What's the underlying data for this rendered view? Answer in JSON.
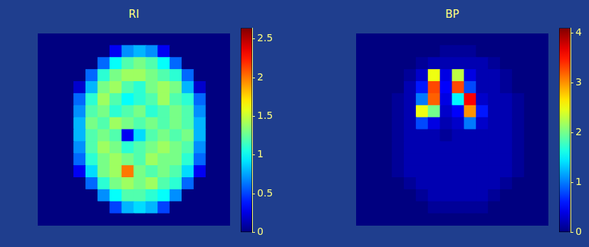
{
  "chart_data": [
    {
      "type": "heatmap",
      "title": "RI",
      "tick_labels": false,
      "cells": [
        [
          0,
          0,
          0,
          0,
          0,
          0,
          0,
          0,
          0,
          0,
          0,
          0,
          0,
          0,
          0,
          0
        ],
        [
          0,
          0,
          0,
          0,
          0,
          0,
          0.3,
          0.7,
          0.8,
          0.7,
          0.3,
          0,
          0,
          0,
          0,
          0
        ],
        [
          0,
          0,
          0,
          0,
          0,
          0.6,
          1.0,
          1.2,
          1.3,
          1.2,
          1.0,
          0.6,
          0,
          0,
          0,
          0
        ],
        [
          0,
          0,
          0,
          0,
          0.6,
          1.1,
          1.3,
          1.4,
          1.4,
          1.3,
          1.2,
          1.1,
          0.6,
          0,
          0,
          0
        ],
        [
          0,
          0,
          0,
          0.2,
          0.8,
          1.3,
          1.4,
          1.2,
          1.1,
          1.3,
          1.4,
          1.3,
          0.8,
          0.2,
          0,
          0
        ],
        [
          0,
          0,
          0,
          0.6,
          1.1,
          1.4,
          1.2,
          1.0,
          1.1,
          1.2,
          1.4,
          1.2,
          1.1,
          0.6,
          0,
          0
        ],
        [
          0,
          0,
          0,
          0.7,
          1.2,
          1.3,
          1.1,
          1.2,
          1.3,
          1.1,
          1.2,
          1.3,
          1.2,
          0.7,
          0,
          0
        ],
        [
          0,
          0,
          0,
          0.8,
          1.3,
          1.2,
          1.4,
          1.3,
          1.2,
          1.3,
          1.2,
          1.3,
          1.2,
          0.8,
          0,
          0
        ],
        [
          0,
          0,
          0,
          0.8,
          1.2,
          1.3,
          1.2,
          0.3,
          0.9,
          1.2,
          1.3,
          1.2,
          1.3,
          0.8,
          0,
          0
        ],
        [
          0,
          0,
          0,
          0.7,
          1.2,
          1.4,
          1.3,
          1.1,
          1.2,
          1.3,
          1.4,
          1.3,
          1.2,
          0.7,
          0,
          0
        ],
        [
          0,
          0,
          0,
          0.6,
          1.1,
          1.3,
          1.4,
          1.3,
          1.2,
          1.4,
          1.3,
          1.3,
          1.1,
          0.6,
          0,
          0
        ],
        [
          0,
          0,
          0,
          0.3,
          0.9,
          1.3,
          1.4,
          2.0,
          1.3,
          1.2,
          1.3,
          1.2,
          0.9,
          0.3,
          0,
          0
        ],
        [
          0,
          0,
          0,
          0,
          0.6,
          1.1,
          1.3,
          1.4,
          1.3,
          1.4,
          1.2,
          1.1,
          0.6,
          0,
          0,
          0
        ],
        [
          0,
          0,
          0,
          0,
          0,
          0.7,
          1.0,
          1.2,
          1.2,
          1.1,
          1.0,
          0.7,
          0,
          0,
          0,
          0
        ],
        [
          0,
          0,
          0,
          0,
          0,
          0,
          0.5,
          0.8,
          0.9,
          0.8,
          0.5,
          0,
          0,
          0,
          0,
          0
        ],
        [
          0,
          0,
          0,
          0,
          0,
          0,
          0,
          0,
          0,
          0,
          0,
          0,
          0,
          0,
          0,
          0
        ]
      ],
      "colorbar": {
        "range": [
          0,
          2.64
        ],
        "ticks": [
          0,
          0.5,
          1,
          1.5,
          2,
          2.5
        ]
      }
    },
    {
      "type": "heatmap",
      "title": "BP",
      "tick_labels": false,
      "cells": [
        [
          0,
          0,
          0,
          0,
          0,
          0,
          0,
          0,
          0,
          0,
          0,
          0,
          0,
          0,
          0,
          0
        ],
        [
          0,
          0,
          0,
          0,
          0,
          0,
          0,
          0.1,
          0.1,
          0.1,
          0,
          0,
          0,
          0,
          0,
          0
        ],
        [
          0,
          0,
          0,
          0,
          0,
          0.1,
          0.2,
          0.2,
          0.2,
          0.2,
          0.2,
          0.1,
          0,
          0,
          0,
          0
        ],
        [
          0,
          0,
          0,
          0,
          0.1,
          0.3,
          2.5,
          0.4,
          2.3,
          0.4,
          0.2,
          0.2,
          0.1,
          0,
          0,
          0
        ],
        [
          0,
          0,
          0,
          0,
          0.2,
          0.6,
          3.3,
          0.5,
          3.3,
          0.8,
          0.2,
          0.2,
          0.1,
          0,
          0,
          0
        ],
        [
          0,
          0,
          0,
          0.1,
          0.2,
          1.0,
          3.2,
          0.4,
          1.5,
          3.6,
          0.3,
          0.2,
          0.2,
          0.1,
          0,
          0
        ],
        [
          0,
          0,
          0,
          0.1,
          0.2,
          2.5,
          2.0,
          0.3,
          0.5,
          3.0,
          0.6,
          0.2,
          0.2,
          0.1,
          0,
          0
        ],
        [
          0,
          0,
          0,
          0.1,
          0.2,
          0.8,
          0.4,
          0.2,
          0.3,
          1.0,
          0.3,
          0.2,
          0.2,
          0.1,
          0,
          0
        ],
        [
          0,
          0,
          0,
          0.1,
          0.2,
          0.2,
          0.2,
          0.1,
          0.2,
          0.2,
          0.2,
          0.2,
          0.2,
          0.1,
          0,
          0
        ],
        [
          0,
          0,
          0,
          0.1,
          0.2,
          0.2,
          0.2,
          0.2,
          0.2,
          0.2,
          0.2,
          0.2,
          0.2,
          0.1,
          0,
          0
        ],
        [
          0,
          0,
          0,
          0.1,
          0.2,
          0.2,
          0.2,
          0.2,
          0.2,
          0.2,
          0.2,
          0.2,
          0.2,
          0.1,
          0,
          0
        ],
        [
          0,
          0,
          0,
          0.1,
          0.2,
          0.2,
          0.2,
          0.2,
          0.2,
          0.2,
          0.2,
          0.2,
          0.2,
          0.1,
          0,
          0
        ],
        [
          0,
          0,
          0,
          0,
          0.1,
          0.2,
          0.2,
          0.2,
          0.2,
          0.2,
          0.2,
          0.2,
          0.1,
          0,
          0,
          0
        ],
        [
          0,
          0,
          0,
          0,
          0,
          0.1,
          0.2,
          0.2,
          0.2,
          0.2,
          0.2,
          0.1,
          0,
          0,
          0,
          0
        ],
        [
          0,
          0,
          0,
          0,
          0,
          0,
          0.1,
          0.1,
          0.1,
          0.1,
          0.1,
          0,
          0,
          0,
          0,
          0
        ],
        [
          0,
          0,
          0,
          0,
          0,
          0,
          0,
          0,
          0,
          0,
          0,
          0,
          0,
          0,
          0,
          0
        ]
      ],
      "colorbar": {
        "range": [
          0,
          4.1
        ],
        "ticks": [
          0,
          1,
          2,
          3,
          4
        ]
      }
    }
  ]
}
